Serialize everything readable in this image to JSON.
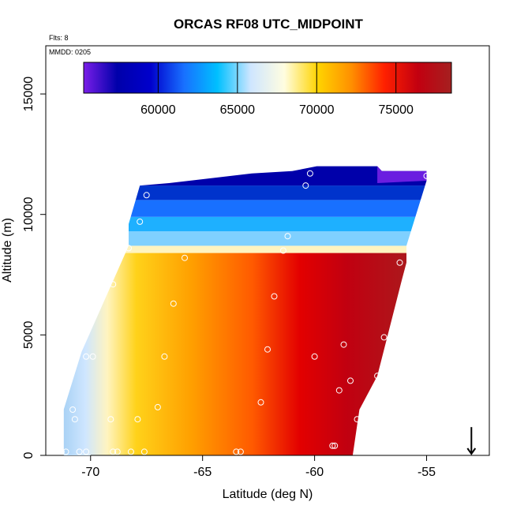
{
  "chart_data": {
    "type": "heatmap",
    "title": "ORCAS RF08 UTC_MIDPOINT",
    "subtitle_flts": "Flts: 8",
    "subtitle_date": "MMDD: 0205",
    "xlabel": "Latitude (deg N)",
    "ylabel": "Altitude (m)",
    "xlim": [
      -72,
      -52.2
    ],
    "ylim": [
      0,
      17000
    ],
    "x_ticks": [
      -70,
      -65,
      -60,
      -55
    ],
    "x_tick_labels": [
      "-70",
      "-65",
      "-60",
      "-55"
    ],
    "y_ticks": [
      0,
      5000,
      10000,
      15000
    ],
    "y_tick_labels": [
      "0",
      "5000",
      "10000",
      "15000"
    ],
    "colorbar": {
      "range": [
        55300,
        78500
      ],
      "ticks": [
        60000,
        65000,
        70000,
        75000
      ],
      "tick_labels": [
        "60000",
        "65000",
        "70000",
        "75000"
      ],
      "stops": [
        "#7a1ee8",
        "#0000aa",
        "#0000cc",
        "#1870ff",
        "#00c0ff",
        "#cfe6ff",
        "#fffde0",
        "#ffd400",
        "#ff9000",
        "#ff2000",
        "#c20010",
        "#a52020"
      ]
    },
    "domain_boundary": [
      [
        -71.2,
        0
      ],
      [
        -71.2,
        1900
      ],
      [
        -70.4,
        4300
      ],
      [
        -68.3,
        8700
      ],
      [
        -68.3,
        9600
      ],
      [
        -67.8,
        11200
      ],
      [
        -66.5,
        11300
      ],
      [
        -62.8,
        11700
      ],
      [
        -61.0,
        11800
      ],
      [
        -59.9,
        12000
      ],
      [
        -57.2,
        12000
      ],
      [
        -57.0,
        11800
      ],
      [
        -55.0,
        11800
      ],
      [
        -55.0,
        11400
      ],
      [
        -55.9,
        8700
      ],
      [
        -55.9,
        8000
      ],
      [
        -56.1,
        7300
      ],
      [
        -57.2,
        3300
      ],
      [
        -58.0,
        1900
      ],
      [
        -58.3,
        0
      ]
    ],
    "time_contours": [
      {
        "value": 75000,
        "points": [
          [
            -57.8,
            0
          ],
          [
            -58.1,
            3000
          ],
          [
            -58.5,
            7800
          ],
          [
            -58.6,
            8350
          ]
        ]
      },
      {
        "value": 70000,
        "points": [
          [
            -67.3,
            0
          ],
          [
            -68.2,
            4000
          ],
          [
            -67.2,
            6500
          ],
          [
            -66.8,
            8200
          ],
          [
            -67.2,
            8400
          ]
        ]
      },
      {
        "value": 65000,
        "points": [
          [
            -70.5,
            0
          ],
          [
            -70.6,
            4200
          ],
          [
            -68.5,
            8700
          ],
          [
            -62.0,
            9200
          ],
          [
            -55.2,
            9800
          ]
        ]
      },
      {
        "value": 60000,
        "points": [
          [
            -68.3,
            9900
          ],
          [
            -62.0,
            10600
          ],
          [
            -57.5,
            11200
          ],
          [
            -55.3,
            11500
          ]
        ]
      }
    ],
    "flight_track": [
      [
        -71.3,
        150
      ],
      [
        -71.1,
        150
      ],
      [
        -70.5,
        150
      ],
      [
        -70.2,
        150
      ],
      [
        -69.1,
        1500
      ],
      [
        -68.2,
        150
      ],
      [
        -67.9,
        1500
      ],
      [
        -67.6,
        150
      ],
      [
        -67.0,
        2000
      ],
      [
        -66.7,
        4100
      ],
      [
        -66.3,
        6300
      ],
      [
        -65.8,
        8200
      ],
      [
        -63.5,
        150
      ],
      [
        -63.3,
        150
      ],
      [
        -62.4,
        2200
      ],
      [
        -62.1,
        4400
      ],
      [
        -61.8,
        6600
      ],
      [
        -61.4,
        8500
      ],
      [
        -61.2,
        9100
      ],
      [
        -60.4,
        11200
      ],
      [
        -60.2,
        11700
      ],
      [
        -60.0,
        4100
      ],
      [
        -59.2,
        400
      ],
      [
        -59.1,
        400
      ],
      [
        -58.9,
        2700
      ],
      [
        -58.7,
        4600
      ],
      [
        -58.4,
        3100
      ],
      [
        -58.1,
        1500
      ],
      [
        -57.9,
        300
      ],
      [
        -57.8,
        300
      ],
      [
        -57.6,
        12150
      ],
      [
        -57.5,
        1700
      ],
      [
        -57.2,
        3300
      ],
      [
        -56.9,
        4900
      ],
      [
        -56.2,
        8000
      ],
      [
        -55.0,
        11600
      ],
      [
        -70.8,
        1900
      ],
      [
        -70.7,
        1500
      ],
      [
        -70.2,
        4100
      ],
      [
        -69.9,
        4100
      ],
      [
        -69.0,
        7100
      ],
      [
        -68.3,
        8600
      ],
      [
        -67.8,
        9700
      ],
      [
        -67.5,
        10800
      ],
      [
        -69.0,
        150
      ],
      [
        -68.8,
        150
      ]
    ],
    "annotation_arrow": {
      "lat": -53,
      "from_alt": 650,
      "to_alt": 0,
      "label": ""
    }
  }
}
